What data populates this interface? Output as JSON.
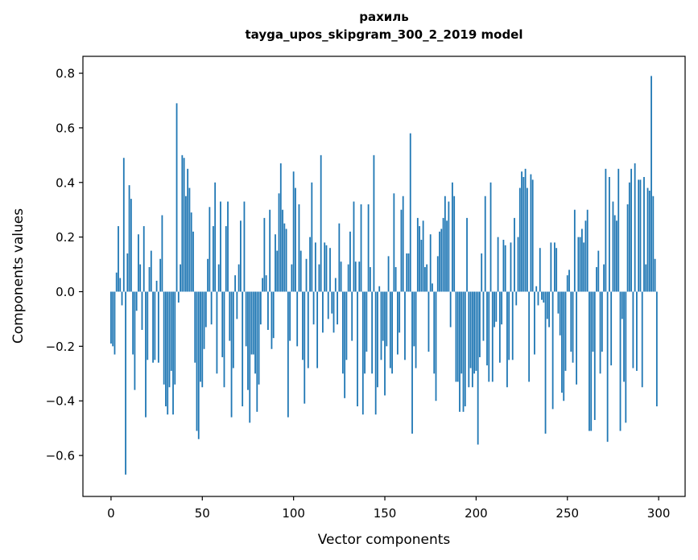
{
  "chart_data": {
    "type": "bar",
    "title": "рахиль\ntayga_upos_skipgram_300_2_2019 model",
    "title_line1": "рахиль",
    "title_line2": "tayga_upos_skipgram_300_2_2019 model",
    "xlabel": "Vector components",
    "ylabel": "Components values",
    "n_components": 300,
    "x_start": 0,
    "bar_color": "#1f77b4",
    "axis_color": "#000000",
    "background_color": "#ffffff",
    "grid": false,
    "legend": "none",
    "xlim": [
      -15.4,
      314.5
    ],
    "ylim": [
      -0.75,
      0.862
    ],
    "x_ticks": [
      0,
      50,
      100,
      150,
      200,
      250,
      300
    ],
    "x_tick_labels": [
      "0",
      "50",
      "100",
      "150",
      "200",
      "250",
      "300"
    ],
    "y_ticks": [
      -0.6,
      -0.4,
      -0.2,
      0.0,
      0.2,
      0.4,
      0.6,
      0.8
    ],
    "y_tick_labels": [
      "−0.6",
      "−0.4",
      "−0.2",
      "0.0",
      "0.2",
      "0.4",
      "0.6",
      "0.8"
    ],
    "values": [
      -0.19,
      -0.2,
      -0.23,
      0.07,
      0.24,
      0.05,
      -0.05,
      0.49,
      -0.67,
      0.14,
      0.39,
      0.34,
      -0.23,
      -0.36,
      -0.07,
      0.21,
      0.1,
      -0.14,
      0.24,
      -0.46,
      -0.25,
      0.09,
      0.15,
      -0.26,
      -0.25,
      0.04,
      -0.26,
      0.12,
      0.28,
      -0.34,
      -0.42,
      -0.45,
      -0.35,
      -0.29,
      -0.45,
      -0.34,
      0.69,
      -0.04,
      0.1,
      0.5,
      0.49,
      0.35,
      0.45,
      0.38,
      0.29,
      0.22,
      -0.26,
      -0.51,
      -0.54,
      -0.33,
      -0.35,
      -0.21,
      -0.13,
      0.12,
      0.31,
      -0.12,
      0.24,
      0.4,
      -0.3,
      0.1,
      0.33,
      -0.24,
      -0.35,
      0.24,
      0.33,
      -0.18,
      -0.46,
      -0.28,
      0.06,
      -0.1,
      0.1,
      0.26,
      -0.42,
      0.33,
      -0.2,
      -0.36,
      -0.48,
      -0.23,
      -0.23,
      -0.3,
      -0.44,
      -0.34,
      -0.12,
      0.05,
      0.27,
      0.06,
      -0.14,
      0.3,
      -0.21,
      -0.17,
      0.21,
      0.15,
      0.36,
      0.47,
      0.3,
      0.25,
      0.23,
      -0.46,
      -0.18,
      0.1,
      0.44,
      0.38,
      -0.2,
      0.32,
      0.15,
      -0.25,
      -0.41,
      0.12,
      -0.28,
      0.2,
      0.4,
      -0.12,
      0.18,
      -0.28,
      0.1,
      0.5,
      -0.15,
      0.18,
      0.17,
      -0.1,
      0.16,
      -0.08,
      -0.15,
      0.05,
      -0.12,
      0.25,
      0.11,
      -0.3,
      -0.39,
      -0.25,
      0.1,
      0.22,
      -0.18,
      0.33,
      0.11,
      -0.42,
      0.11,
      0.32,
      -0.45,
      -0.3,
      -0.22,
      0.32,
      0.09,
      -0.3,
      0.5,
      -0.45,
      -0.35,
      0.02,
      -0.25,
      -0.18,
      -0.38,
      -0.2,
      0.13,
      -0.28,
      -0.3,
      0.36,
      0.09,
      -0.23,
      -0.15,
      0.3,
      0.35,
      -0.25,
      0.14,
      0.14,
      0.58,
      -0.52,
      -0.2,
      -0.28,
      0.27,
      0.24,
      0.19,
      0.26,
      0.09,
      0.1,
      -0.22,
      0.21,
      0.03,
      -0.3,
      -0.4,
      0.13,
      0.22,
      0.23,
      0.27,
      0.35,
      0.26,
      0.33,
      -0.13,
      0.4,
      0.35,
      -0.33,
      -0.33,
      -0.44,
      -0.3,
      -0.44,
      -0.42,
      0.27,
      -0.35,
      -0.28,
      -0.35,
      -0.3,
      -0.29,
      -0.56,
      -0.24,
      0.14,
      -0.18,
      0.35,
      -0.27,
      -0.33,
      0.4,
      -0.33,
      -0.13,
      -0.11,
      0.2,
      -0.26,
      -0.12,
      0.19,
      0.17,
      -0.35,
      -0.25,
      0.18,
      -0.25,
      0.27,
      -0.05,
      0.2,
      0.38,
      0.44,
      0.42,
      0.45,
      0.38,
      -0.33,
      0.43,
      0.41,
      -0.23,
      0.02,
      -0.05,
      0.16,
      -0.03,
      -0.04,
      -0.52,
      -0.1,
      -0.13,
      0.18,
      -0.43,
      0.18,
      0.16,
      -0.08,
      -0.16,
      -0.37,
      -0.4,
      -0.29,
      0.06,
      0.08,
      -0.22,
      -0.26,
      0.3,
      -0.34,
      0.2,
      0.2,
      0.23,
      0.18,
      0.26,
      0.3,
      -0.51,
      -0.51,
      -0.22,
      -0.47,
      0.09,
      0.15,
      -0.3,
      -0.22,
      0.1,
      0.45,
      -0.55,
      0.42,
      -0.27,
      0.33,
      0.28,
      0.26,
      0.45,
      -0.51,
      -0.1,
      -0.33,
      -0.48,
      0.32,
      0.4,
      0.45,
      -0.28,
      0.47,
      -0.29,
      0.41,
      0.41,
      -0.35,
      0.42,
      0.1,
      0.38,
      0.37,
      0.79,
      0.35,
      0.12,
      -0.42
    ]
  }
}
